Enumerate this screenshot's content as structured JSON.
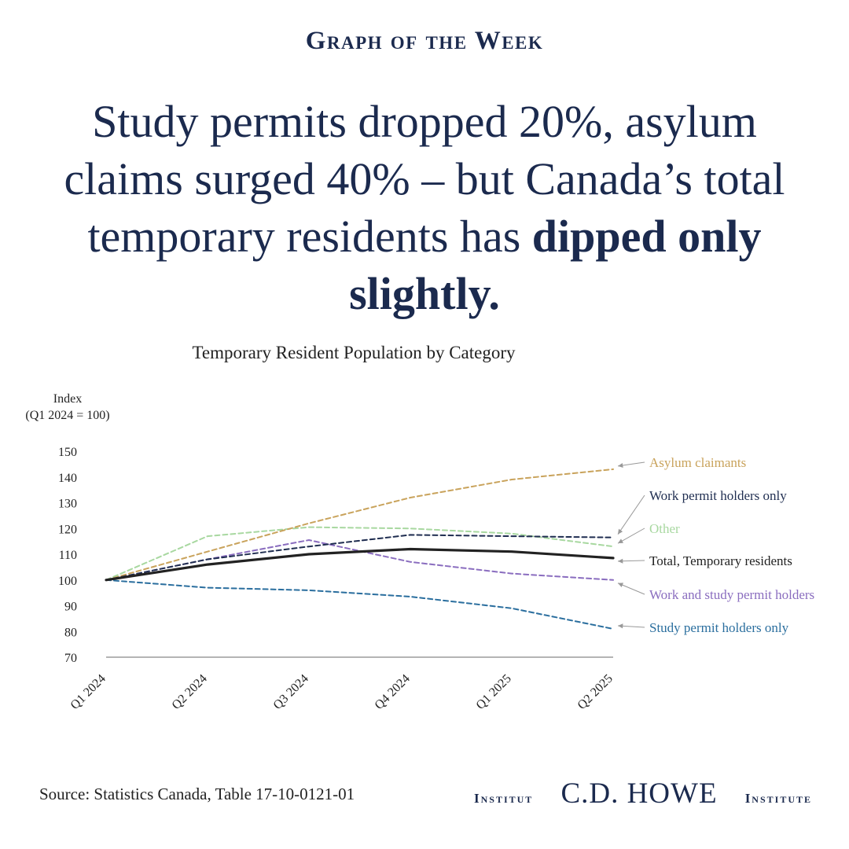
{
  "kicker": "Graph of the Week",
  "headline": {
    "regular": "Study permits dropped 20%, asylum claims surged 40% – but Canada’s total temporary residents has ",
    "bold": "dipped only slightly."
  },
  "chart_data": {
    "type": "line",
    "title": "Temporary Resident Population by Category",
    "ylabel": [
      "Index",
      "(Q1 2024 = 100)"
    ],
    "ylim": [
      70,
      150
    ],
    "yticks": [
      70,
      80,
      90,
      100,
      110,
      120,
      130,
      140,
      150
    ],
    "categories": [
      "Q1 2024",
      "Q2 2024",
      "Q3 2024",
      "Q4 2024",
      "Q1 2025",
      "Q2 2025"
    ],
    "grid": false,
    "legend": "inline-right",
    "series": [
      {
        "name": "Asylum claimants",
        "values": [
          100,
          111,
          122,
          132,
          139,
          143
        ],
        "color": "#c9a35c",
        "style": "dashed",
        "width": 2
      },
      {
        "name": "Work permit holders only",
        "values": [
          100,
          108,
          113,
          117.5,
          117,
          116.5
        ],
        "color": "#1f2d50",
        "style": "dashed",
        "width": 2
      },
      {
        "name": "Other",
        "values": [
          100,
          117,
          120.5,
          120,
          118,
          113
        ],
        "color": "#a8d8a0",
        "style": "dashed",
        "width": 2
      },
      {
        "name": "Total, Temporary residents",
        "values": [
          100,
          106,
          110,
          112,
          111,
          108.5
        ],
        "color": "#222222",
        "style": "solid",
        "width": 3.2
      },
      {
        "name": "Work and study permit holders",
        "values": [
          100,
          108,
          115.5,
          107,
          102.5,
          100
        ],
        "color": "#8a6dbf",
        "style": "dashed",
        "width": 2
      },
      {
        "name": "Study permit holders only",
        "values": [
          100,
          97,
          96,
          93.5,
          89,
          81
        ],
        "color": "#2a6e9e",
        "style": "dashed",
        "width": 2
      }
    ]
  },
  "source": "Source: Statistics Canada, Table 17-10-0121-01",
  "logo": {
    "left": "Institut",
    "main": "C.D. HOWE",
    "right": "Institute"
  }
}
